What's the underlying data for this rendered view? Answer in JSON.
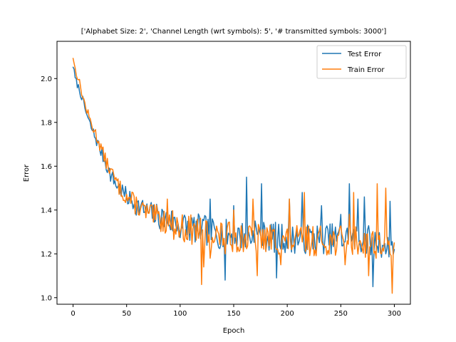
{
  "chart_data": {
    "type": "line",
    "title": "['Alphabet Size: 2', 'Channel Length (wrt symbols): 5', '# transmitted symbols: 3000']",
    "xlabel": "Epoch",
    "ylabel": "Error",
    "xlim": [
      -15,
      315
    ],
    "ylim": [
      0.97,
      2.17
    ],
    "x_ticks": [
      0,
      50,
      100,
      150,
      200,
      250,
      300
    ],
    "y_ticks": [
      1.0,
      1.2,
      1.4,
      1.6,
      1.8,
      2.0
    ],
    "y_tick_labels": [
      "1.0",
      "1.2",
      "1.4",
      "1.6",
      "1.8",
      "2.0"
    ],
    "grid": false,
    "legend_position": "top-right",
    "series": [
      {
        "name": "Test Error",
        "color": "#1f77b4",
        "anchors": [
          [
            0,
            2.06
          ],
          [
            2,
            2.0
          ],
          [
            5,
            1.96
          ],
          [
            8,
            1.92
          ],
          [
            10,
            1.88
          ],
          [
            15,
            1.8
          ],
          [
            20,
            1.74
          ],
          [
            25,
            1.68
          ],
          [
            30,
            1.62
          ],
          [
            35,
            1.56
          ],
          [
            40,
            1.52
          ],
          [
            45,
            1.49
          ],
          [
            50,
            1.46
          ],
          [
            60,
            1.42
          ],
          [
            70,
            1.39
          ],
          [
            80,
            1.37
          ],
          [
            90,
            1.35
          ],
          [
            100,
            1.33
          ],
          [
            120,
            1.31
          ],
          [
            140,
            1.29
          ],
          [
            160,
            1.28
          ],
          [
            180,
            1.28
          ],
          [
            200,
            1.27
          ],
          [
            220,
            1.27
          ],
          [
            240,
            1.27
          ],
          [
            260,
            1.27
          ],
          [
            280,
            1.26
          ],
          [
            300,
            1.24
          ]
        ],
        "noise": [
          0.015,
          0.07
        ],
        "spikes": [
          [
            120,
            1.31
          ],
          [
            128,
            1.45
          ],
          [
            142,
            1.08
          ],
          [
            150,
            1.42
          ],
          [
            162,
            1.55
          ],
          [
            170,
            1.35
          ],
          [
            176,
            1.52
          ],
          [
            190,
            1.09
          ],
          [
            202,
            1.45
          ],
          [
            214,
            1.48
          ],
          [
            232,
            1.42
          ],
          [
            250,
            1.38
          ],
          [
            258,
            1.52
          ],
          [
            266,
            1.45
          ],
          [
            272,
            1.46
          ],
          [
            280,
            1.05
          ],
          [
            292,
            1.2
          ],
          [
            296,
            1.44
          ],
          [
            300,
            1.22
          ]
        ],
        "seed": 7
      },
      {
        "name": "Train Error",
        "color": "#ff7f0e",
        "anchors": [
          [
            0,
            2.1
          ],
          [
            2,
            2.04
          ],
          [
            5,
            2.0
          ],
          [
            8,
            1.94
          ],
          [
            10,
            1.9
          ],
          [
            15,
            1.82
          ],
          [
            20,
            1.76
          ],
          [
            25,
            1.7
          ],
          [
            30,
            1.63
          ],
          [
            35,
            1.58
          ],
          [
            40,
            1.53
          ],
          [
            45,
            1.49
          ],
          [
            50,
            1.46
          ],
          [
            60,
            1.42
          ],
          [
            70,
            1.38
          ],
          [
            80,
            1.36
          ],
          [
            90,
            1.34
          ],
          [
            100,
            1.32
          ],
          [
            120,
            1.3
          ],
          [
            140,
            1.28
          ],
          [
            160,
            1.27
          ],
          [
            180,
            1.27
          ],
          [
            200,
            1.26
          ],
          [
            220,
            1.26
          ],
          [
            240,
            1.26
          ],
          [
            260,
            1.26
          ],
          [
            280,
            1.25
          ],
          [
            300,
            1.23
          ]
        ],
        "noise": [
          0.015,
          0.07
        ],
        "spikes": [
          [
            88,
            1.45
          ],
          [
            118,
            1.3
          ],
          [
            120,
            1.06
          ],
          [
            122,
            1.14
          ],
          [
            128,
            1.18
          ],
          [
            142,
            1.2
          ],
          [
            150,
            1.4
          ],
          [
            168,
            1.45
          ],
          [
            172,
            1.1
          ],
          [
            182,
            1.3
          ],
          [
            194,
            1.15
          ],
          [
            202,
            1.45
          ],
          [
            216,
            1.48
          ],
          [
            254,
            1.15
          ],
          [
            258,
            1.38
          ],
          [
            262,
            1.48
          ],
          [
            276,
            1.1
          ],
          [
            284,
            1.52
          ],
          [
            292,
            1.5
          ],
          [
            296,
            1.2
          ],
          [
            298,
            1.02
          ],
          [
            300,
            1.25
          ]
        ],
        "seed": 13
      }
    ]
  }
}
